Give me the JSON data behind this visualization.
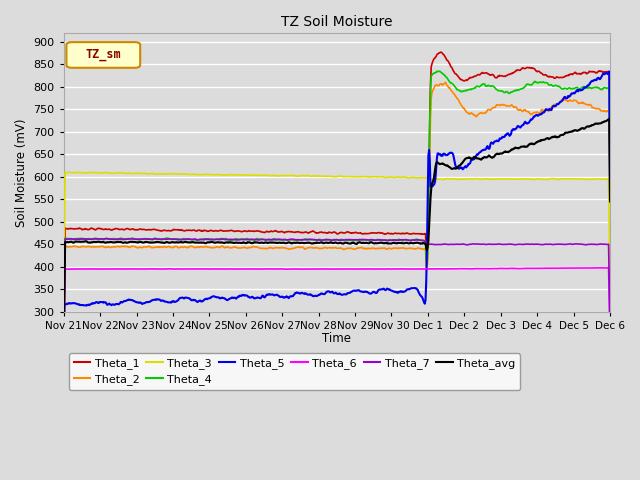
{
  "title": "TZ Soil Moisture",
  "xlabel": "Time",
  "ylabel": "Soil Moisture (mV)",
  "ylim": [
    300,
    920
  ],
  "yticks": [
    300,
    350,
    400,
    450,
    500,
    550,
    600,
    650,
    700,
    750,
    800,
    850,
    900
  ],
  "bg_color": "#dcdcdc",
  "plot_bg": "#dcdcdc",
  "legend_label": "TZ_sm",
  "series": {
    "Theta_1": {
      "color": "#cc0000",
      "lw": 1.2
    },
    "Theta_2": {
      "color": "#ff8800",
      "lw": 1.2
    },
    "Theta_3": {
      "color": "#dddd00",
      "lw": 1.2
    },
    "Theta_4": {
      "color": "#00cc00",
      "lw": 1.2
    },
    "Theta_5": {
      "color": "#0000ee",
      "lw": 1.5
    },
    "Theta_6": {
      "color": "#ff00ff",
      "lw": 1.2
    },
    "Theta_7": {
      "color": "#9900cc",
      "lw": 1.2
    },
    "Theta_avg": {
      "color": "#000000",
      "lw": 1.5
    }
  },
  "xtick_labels": [
    "Nov 21",
    "Nov 22",
    "Nov 23",
    "Nov 24",
    "Nov 25",
    "Nov 26",
    "Nov 27",
    "Nov 28",
    "Nov 29",
    "Nov 30",
    "Dec 1",
    "Dec 2",
    "Dec 3",
    "Dec 4",
    "Dec 5",
    "Dec 6"
  ]
}
